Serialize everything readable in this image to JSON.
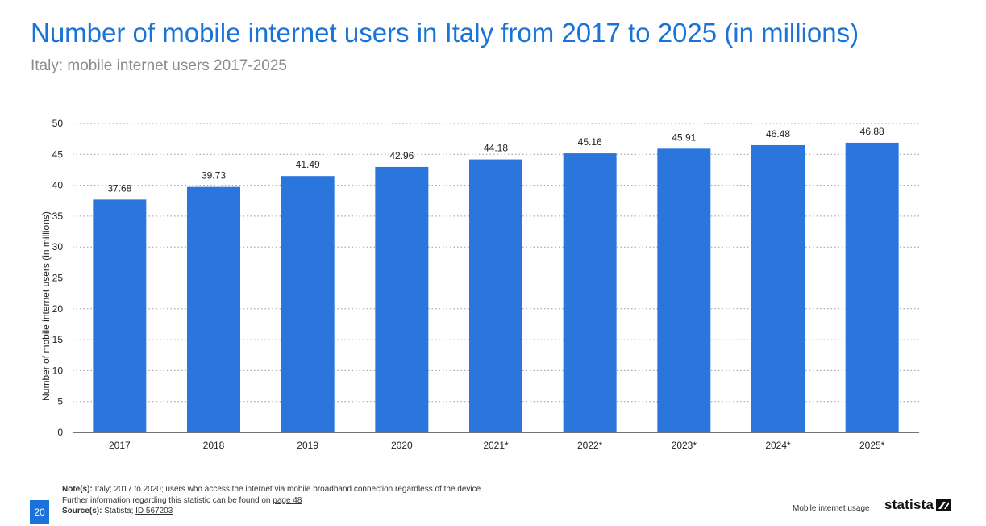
{
  "header": {
    "title": "Number of mobile internet users in Italy from 2017 to 2025 (in millions)",
    "subtitle": "Italy: mobile internet users 2017-2025"
  },
  "chart_data": {
    "type": "bar",
    "categories": [
      "2017",
      "2018",
      "2019",
      "2020",
      "2021*",
      "2022*",
      "2023*",
      "2024*",
      "2025*"
    ],
    "values": [
      37.68,
      39.73,
      41.49,
      42.96,
      44.18,
      45.16,
      45.91,
      46.48,
      46.88
    ],
    "value_labels": [
      "37.68",
      "39.73",
      "41.49",
      "42.96",
      "44.18",
      "45.16",
      "45.91",
      "46.48",
      "46.88"
    ],
    "xlabel": "",
    "ylabel": "Number of mobile internet users (in millions)",
    "ylim": [
      0,
      50
    ],
    "yticks": [
      0,
      5,
      10,
      15,
      20,
      25,
      30,
      35,
      40,
      45,
      50
    ],
    "grid": true,
    "bar_color": "#2a76dd"
  },
  "footer": {
    "notes_label": "Note(s):",
    "notes_text": "Italy; 2017 to 2020; users who access the internet via mobile broadband connection regardless of the device",
    "further_text": "Further information regarding this statistic can be found on",
    "further_link": "page 48",
    "source_label": "Source(s):",
    "source_text": "Statista;",
    "source_link": "ID 567203",
    "page_number": "20",
    "section": "Mobile internet usage",
    "brand": "statista",
    "brand_icon": "statista-logo-icon"
  }
}
